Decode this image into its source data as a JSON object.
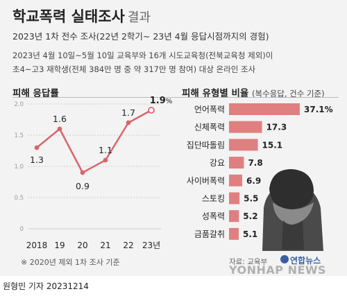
{
  "header": {
    "title": "학교폭력 실태조사",
    "title_suffix": "결과",
    "subtitle": "2023년 1차 전수 조사(22년 2학기~ 23년 4월 응답시점까지의 경험)",
    "desc_line1": "2023년 4월 10일~5월 10일 교육부와 16개 시도교육청(전북교육청 제외)이",
    "desc_line2": "초4~고3 재학생(전체 384만 명 중 약 317만 명 참여) 대상 온라인 조사"
  },
  "footer": {
    "footnote": "※ 2020년 제외 1차 조사 기준",
    "source": "자료: 교육부",
    "logo_ko": "연합뉴스",
    "logo_en": "YONHAP NEWS",
    "byline": "원형민 기자  20231214"
  },
  "colors": {
    "line": "#d8656c",
    "bar": "#e07f80",
    "grid": "#cccccc",
    "illustration": "#3a3a3a"
  },
  "chart_data": [
    {
      "type": "line",
      "title": "피해 응답률",
      "x": [
        "2018",
        "19",
        "20",
        "21",
        "22",
        "23년"
      ],
      "values": [
        1.3,
        1.6,
        0.9,
        1.1,
        1.7,
        1.9
      ],
      "value_labels": [
        "1.3",
        "1.6",
        "0.9",
        "1.1",
        "1.7",
        "1.9"
      ],
      "last_unit": "%",
      "yticks": [
        "0",
        "0.5",
        "1.0",
        "1.5",
        "2.0"
      ],
      "ylim": [
        0,
        2.0
      ],
      "grid": true
    },
    {
      "type": "bar",
      "orientation": "horizontal",
      "title": "피해 유형별 비율",
      "title_note": "(복수응답, 건수 기준)",
      "categories": [
        "언어폭력",
        "신체폭력",
        "집단따돌림",
        "강요",
        "사이버폭력",
        "스토킹",
        "성폭력",
        "금품갈취"
      ],
      "values": [
        37.1,
        17.3,
        15.1,
        7.8,
        6.9,
        5.5,
        5.2,
        5.1
      ],
      "value_labels": [
        "37.1%",
        "17.3",
        "15.1",
        "7.8",
        "6.9",
        "5.5",
        "5.2",
        "5.1"
      ]
    }
  ]
}
